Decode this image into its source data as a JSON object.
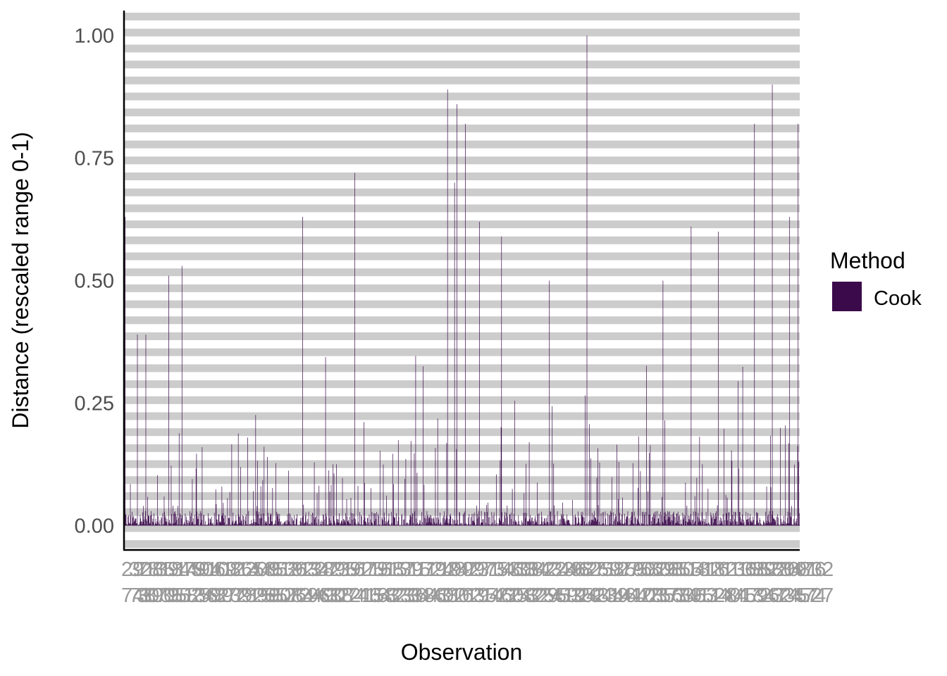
{
  "chart_data": {
    "type": "bar",
    "xlabel": "Observation",
    "ylabel": "Distance (rescaled range 0-1)",
    "ylim": [
      -0.05,
      1.05
    ],
    "y_ticks": [
      "0.00",
      "0.25",
      "0.50",
      "0.75",
      "1.00"
    ],
    "y_tick_values": [
      0,
      0.25,
      0.5,
      0.75,
      1.0
    ],
    "x_tick_labels_overplotted": true,
    "legend": {
      "title": "Method",
      "entries": [
        "Cook"
      ],
      "position": "right"
    },
    "colors": {
      "bar": "#3b0a4b",
      "stripe": "#cccccc",
      "axis": "#000000",
      "x_tick": "#999999"
    },
    "n_observations": 1440,
    "notable_observations": [
      {
        "index": 2,
        "value": 0.63
      },
      {
        "index": 28,
        "value": 0.39
      },
      {
        "index": 46,
        "value": 0.39
      },
      {
        "index": 95,
        "value": 0.51
      },
      {
        "index": 123,
        "value": 0.53
      },
      {
        "index": 380,
        "value": 0.63
      },
      {
        "index": 491,
        "value": 0.72
      },
      {
        "index": 689,
        "value": 0.89
      },
      {
        "index": 704,
        "value": 0.7
      },
      {
        "index": 709,
        "value": 0.86
      },
      {
        "index": 727,
        "value": 0.82
      },
      {
        "index": 757,
        "value": 0.62
      },
      {
        "index": 804,
        "value": 0.59
      },
      {
        "index": 906,
        "value": 0.5
      },
      {
        "index": 986,
        "value": 1.0
      },
      {
        "index": 1148,
        "value": 0.5
      },
      {
        "index": 1208,
        "value": 0.61
      },
      {
        "index": 1266,
        "value": 0.6
      },
      {
        "index": 1343,
        "value": 0.82
      },
      {
        "index": 1381,
        "value": 0.9
      },
      {
        "index": 1418,
        "value": 0.63
      },
      {
        "index": 1436,
        "value": 0.82
      }
    ]
  }
}
